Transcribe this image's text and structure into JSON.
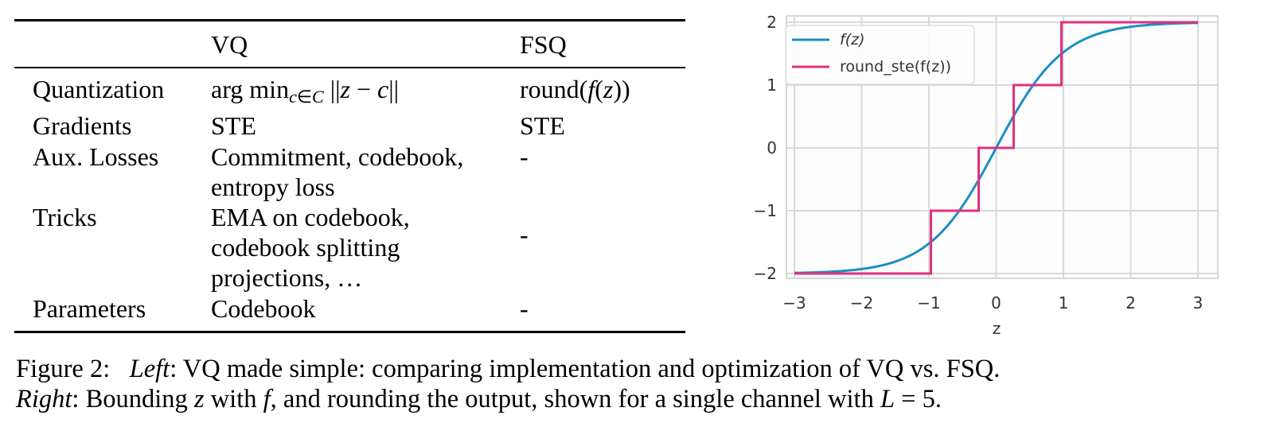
{
  "table": {
    "headers": [
      "",
      "VQ",
      "FSQ"
    ],
    "rows": [
      {
        "label": "Quantization",
        "vq": "arg min_{c∈C} ||z − c||",
        "fsq": "round(f(z))"
      },
      {
        "label": "Gradients",
        "vq": "STE",
        "fsq": "STE"
      },
      {
        "label": "Aux. Losses",
        "vq_lines": [
          "Commitment, codebook,",
          "entropy loss"
        ],
        "fsq": "-"
      },
      {
        "label": "Tricks",
        "vq_lines": [
          "EMA on codebook,",
          "codebook splitting",
          "projections, …"
        ],
        "fsq": "-"
      },
      {
        "label": "Parameters",
        "vq": "Codebook",
        "fsq": "-"
      }
    ],
    "math": {
      "argmin": "arg min",
      "sub_c": "c",
      "sub_in": "∈",
      "sub_C": "C",
      "norm_open": "||",
      "z": "z",
      "minus": " − ",
      "c": "c",
      "norm_close": "||",
      "round": "round(",
      "f": "f",
      "paren_open": "(",
      "paren_close": "))"
    }
  },
  "chart_data": {
    "type": "line",
    "title": "",
    "xlabel": "z",
    "ylabel": "",
    "xlim": [
      -3,
      3
    ],
    "ylim": [
      -2,
      2
    ],
    "xticks": [
      "−3",
      "−2",
      "−1",
      "0",
      "1",
      "2",
      "3"
    ],
    "yticks": [
      "2",
      "1",
      "0",
      "−1",
      "−2"
    ],
    "grid": true,
    "legend_position": "upper left",
    "series": [
      {
        "name": "f(z)",
        "color": "#1a8fc4",
        "x": [
          -3,
          -2.5,
          -2,
          -1.5,
          -1,
          -0.5,
          0,
          0.5,
          1,
          1.5,
          2,
          2.5,
          3
        ],
        "y": [
          -1.99,
          -1.97,
          -1.93,
          -1.81,
          -1.52,
          -0.92,
          0,
          0.92,
          1.52,
          1.81,
          1.93,
          1.97,
          1.99
        ]
      },
      {
        "name": "round_ste(f(z))",
        "color": "#e0307f",
        "x": [
          -3,
          -0.97,
          -0.97,
          -0.26,
          -0.26,
          0.26,
          0.26,
          0.97,
          0.97,
          3
        ],
        "y": [
          -2,
          -2,
          -1,
          -1,
          0,
          0,
          1,
          1,
          2,
          2
        ]
      }
    ],
    "legend": [
      "f(z)",
      "round_ste(f(z))"
    ]
  },
  "caption": {
    "prefix": "Figure 2:",
    "left_label": "Left",
    "left_text": ": VQ made simple: comparing implementation and optimization of VQ vs. FSQ.",
    "right_label": "Right",
    "right_text_1": ": Bounding ",
    "z": "z",
    "right_text_2": " with ",
    "f": "f",
    "right_text_3": ", and rounding the output, shown for a single channel with ",
    "L": "L",
    "right_text_4": " = 5."
  }
}
